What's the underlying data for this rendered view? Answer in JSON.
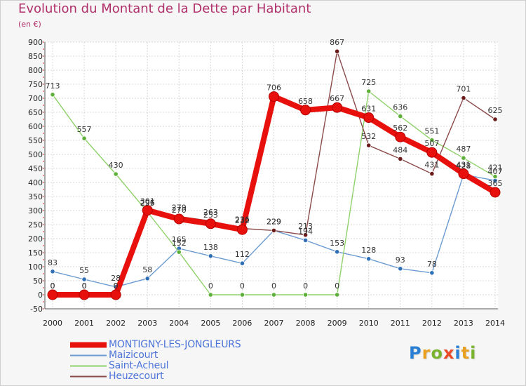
{
  "title": "Evolution du Montant de la Dette par Habitant",
  "subtitle": "(en €)",
  "logo": {
    "letters": [
      "P",
      "r",
      "o",
      "x",
      "i",
      "t",
      "i"
    ],
    "colors": [
      "#2a7fd4",
      "#e8a020",
      "#7ab32e",
      "#e84a2a",
      "#2a7fd4",
      "#e8a020",
      "#7ab32e"
    ]
  },
  "chart_data": {
    "type": "line",
    "title": "Evolution du Montant de la Dette par Habitant",
    "ylabel": "(en €)",
    "xlabel": "",
    "ylim": [
      -50,
      900
    ],
    "yticks": [
      "-50",
      "0",
      "50",
      "100",
      "150",
      "200",
      "250",
      "300",
      "350",
      "400",
      "450",
      "500",
      "550",
      "600",
      "650",
      "700",
      "750",
      "800",
      "850",
      "900"
    ],
    "ytick_values": [
      -50,
      0,
      50,
      100,
      150,
      200,
      250,
      300,
      350,
      400,
      450,
      500,
      550,
      600,
      650,
      700,
      750,
      800,
      850,
      900
    ],
    "categories": [
      "2000",
      "2001",
      "2002",
      "2003",
      "2004",
      "2005",
      "2006",
      "2007",
      "2008",
      "2009",
      "2010",
      "2011",
      "2012",
      "2013",
      "2014"
    ],
    "grid": true,
    "legend_position": "bottom-left",
    "series": [
      {
        "name": "Maizicourt",
        "color": "#6b9bd1",
        "marker_color": "#2f6fb5",
        "values": [
          83,
          55,
          28,
          58,
          165,
          138,
          112,
          229,
          194,
          153,
          128,
          93,
          78,
          428,
          407
        ],
        "labels": [
          "83",
          "55",
          "28",
          "58",
          "165",
          "138",
          "112",
          "229",
          "194",
          "153",
          "128",
          "93",
          "78",
          "428",
          "407"
        ]
      },
      {
        "name": "Saint-Acheul",
        "color": "#8fd16a",
        "marker_color": "#5fb03a",
        "values": [
          713,
          557,
          430,
          295,
          152,
          0,
          0,
          0,
          0,
          0,
          725,
          636,
          551,
          487,
          421
        ],
        "labels": [
          "713",
          "557",
          "430",
          "295",
          "152",
          "0",
          "0",
          "0",
          "0",
          "0",
          "725",
          "636",
          "551",
          "487",
          "421"
        ]
      },
      {
        "name": "Heuzecourt",
        "color": "#8a4a4a",
        "marker_color": "#6b1a1a",
        "values": [
          0,
          0,
          0,
          296,
          279,
          263,
          236,
          229,
          213,
          867,
          532,
          484,
          431,
          701,
          625
        ],
        "labels": [
          "0",
          "0",
          "0",
          "296",
          "279",
          "263",
          "236",
          "229",
          "213",
          "867",
          "532",
          "484",
          "431",
          "701",
          "625"
        ]
      },
      {
        "name": "MONTIGNY-LES-JONGLEURS",
        "color": "#e8100c",
        "marker_color": "#e8100c",
        "values": [
          0,
          0,
          0,
          301,
          270,
          253,
          232,
          706,
          658,
          667,
          631,
          562,
          507,
          431,
          365
        ],
        "labels": [
          "0",
          "0",
          "0",
          "301",
          "270",
          "253",
          "232",
          "706",
          "658",
          "667",
          "631",
          "562",
          "507",
          "431",
          "365"
        ]
      }
    ]
  },
  "legend": [
    {
      "label": "MONTIGNY-LES-JONGLEURS",
      "color": "#e8100c",
      "thickness": 8
    },
    {
      "label": "Maizicourt",
      "color": "#6b9bd1",
      "thickness": 2
    },
    {
      "label": "Saint-Acheul",
      "color": "#8fd16a",
      "thickness": 2
    },
    {
      "label": "Heuzecourt",
      "color": "#8a4a4a",
      "thickness": 2
    }
  ]
}
